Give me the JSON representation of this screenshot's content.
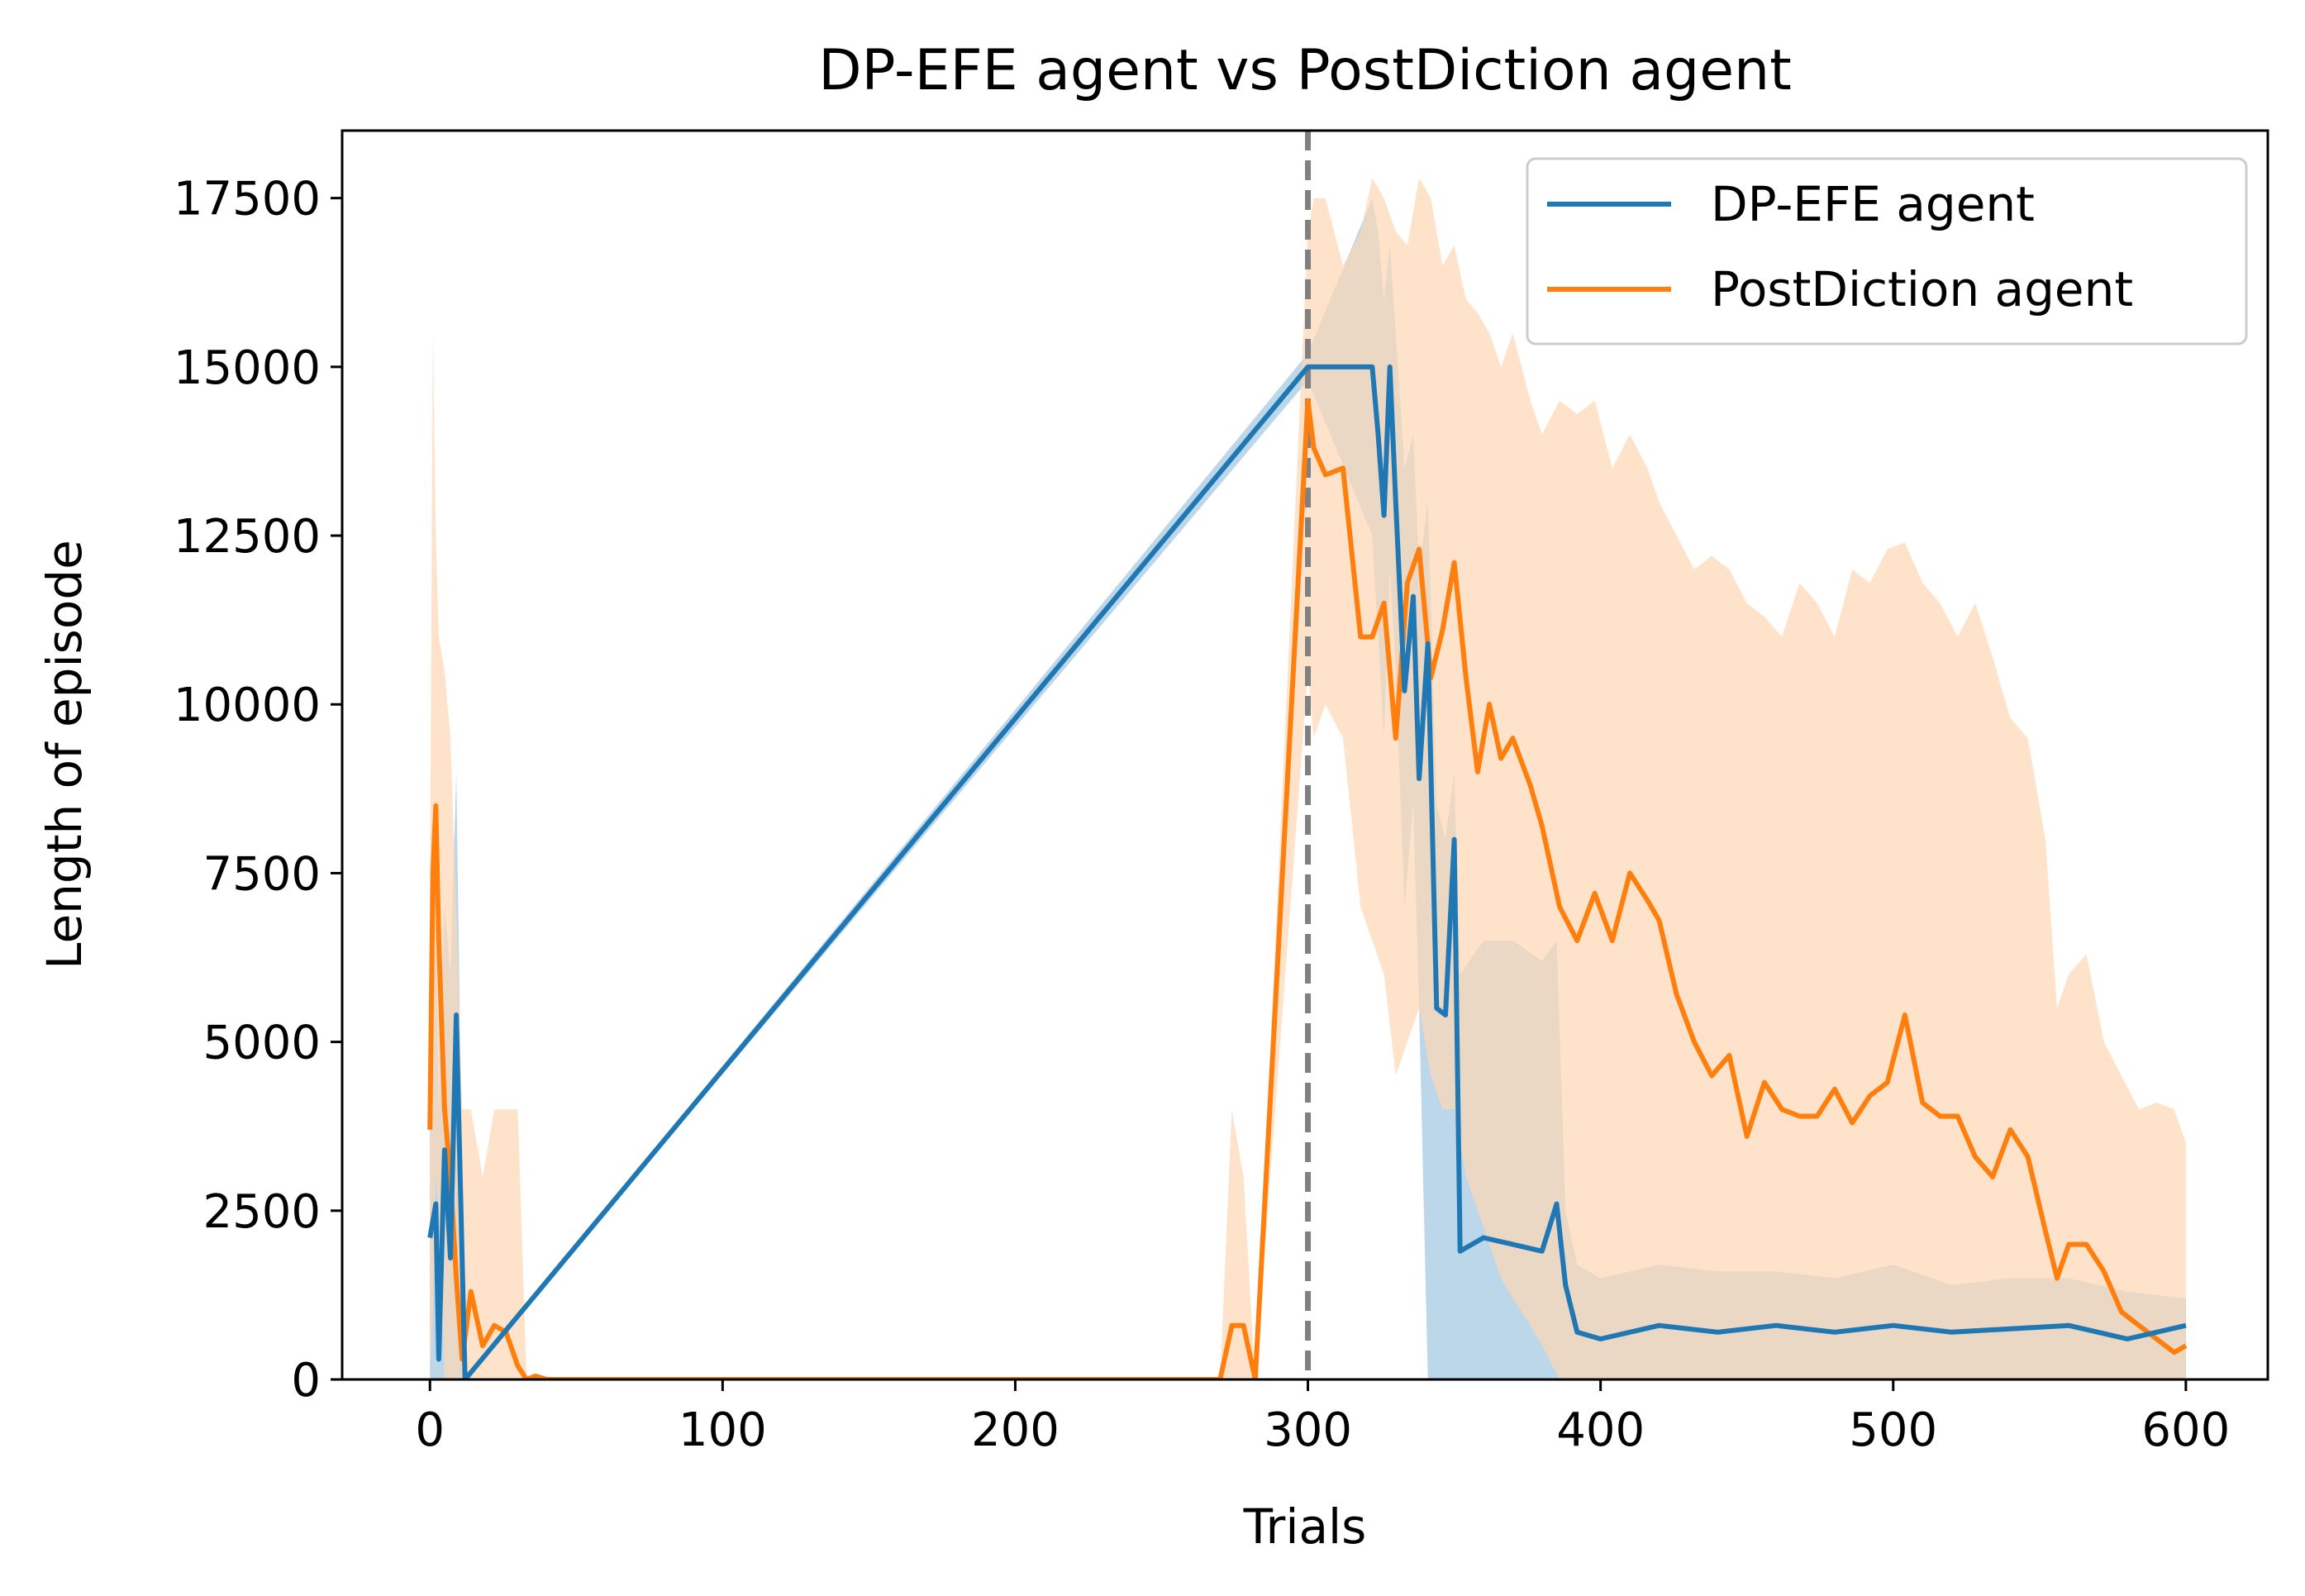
{
  "chart_data": {
    "type": "line",
    "title": "DP-EFE agent vs PostDiction agent",
    "xlabel": "Trials",
    "ylabel": "Length of episode",
    "xlim": [
      -30,
      628
    ],
    "ylim": [
      0,
      18500
    ],
    "x_ticks": [
      0,
      100,
      200,
      300,
      400,
      500,
      600
    ],
    "y_ticks": [
      0,
      2500,
      5000,
      7500,
      10000,
      12500,
      15000,
      17500
    ],
    "grid": false,
    "legend_placement": "top-right",
    "vline": {
      "x": 300,
      "style": "dashed",
      "color": "#808080"
    },
    "series": [
      {
        "name": "DP-EFE agent",
        "color": "#1f77b4",
        "band_color": "#a6c8e3",
        "x": [
          0,
          2,
          3,
          5,
          7,
          9,
          12,
          300,
          322,
          324,
          326,
          328,
          330,
          333,
          336,
          338,
          341,
          344,
          347,
          350,
          352,
          360,
          370,
          380,
          385,
          388,
          392,
          400,
          420,
          440,
          460,
          480,
          500,
          520,
          540,
          560,
          580,
          600
        ],
        "y": [
          2100,
          2600,
          300,
          3400,
          1800,
          5400,
          0,
          15000,
          15000,
          14000,
          12800,
          15000,
          13000,
          10200,
          11600,
          8900,
          10900,
          5500,
          5400,
          8000,
          1900,
          2100,
          2000,
          1900,
          2600,
          1400,
          700,
          600,
          800,
          700,
          800,
          700,
          800,
          700,
          750,
          800,
          600,
          800
        ],
        "upper": [
          4000,
          7000,
          4000,
          7000,
          6000,
          9000,
          0,
          15200,
          17500,
          17000,
          16000,
          16800,
          15500,
          13500,
          14000,
          12000,
          13000,
          8500,
          8000,
          9000,
          6000,
          6500,
          6500,
          6200,
          6500,
          2500,
          1700,
          1500,
          1700,
          1600,
          1600,
          1500,
          1700,
          1400,
          1500,
          1500,
          1300,
          1200
        ],
        "lower": [
          0,
          0,
          0,
          0,
          0,
          0,
          0,
          14800,
          12500,
          11000,
          9500,
          12000,
          10500,
          7000,
          8500,
          5500,
          0,
          0,
          0,
          0,
          0,
          0,
          0,
          0,
          0,
          0,
          0,
          0,
          0,
          0,
          0,
          0,
          0,
          0,
          0,
          0,
          0,
          0
        ]
      },
      {
        "name": "PostDiction agent",
        "color": "#ff7f0e",
        "band_color": "#fdd7b3",
        "x": [
          0,
          1,
          2,
          3,
          5,
          7,
          9,
          11,
          14,
          18,
          22,
          26,
          30,
          33,
          36,
          40,
          60,
          100,
          200,
          270,
          274,
          278,
          282,
          300,
          302,
          306,
          312,
          318,
          322,
          326,
          330,
          334,
          338,
          342,
          346,
          350,
          354,
          358,
          362,
          366,
          370,
          376,
          380,
          386,
          392,
          398,
          404,
          410,
          416,
          420,
          426,
          432,
          438,
          444,
          450,
          456,
          462,
          468,
          474,
          480,
          486,
          492,
          498,
          504,
          510,
          516,
          522,
          528,
          534,
          540,
          546,
          552,
          556,
          560,
          566,
          572,
          578,
          584,
          590,
          596,
          600
        ],
        "y": [
          3700,
          7500,
          8500,
          6500,
          4000,
          3000,
          1500,
          300,
          1300,
          500,
          800,
          700,
          200,
          0,
          50,
          0,
          0,
          0,
          0,
          0,
          800,
          800,
          0,
          14500,
          13800,
          13400,
          13500,
          11000,
          11000,
          11500,
          9500,
          11800,
          12300,
          10400,
          11100,
          12100,
          10400,
          9000,
          10000,
          9200,
          9500,
          8800,
          8200,
          7000,
          6500,
          7200,
          6500,
          7500,
          7100,
          6800,
          5700,
          5000,
          4500,
          4800,
          3600,
          4400,
          4000,
          3900,
          3900,
          4300,
          3800,
          4200,
          4400,
          5400,
          4100,
          3900,
          3900,
          3300,
          3000,
          3700,
          3300,
          2200,
          1500,
          2000,
          2000,
          1600,
          1000,
          800,
          600,
          400,
          500
        ],
        "upper": [
          7000,
          15600,
          12500,
          11000,
          10500,
          9500,
          7000,
          4000,
          4000,
          3000,
          4000,
          4000,
          4000,
          0,
          0,
          0,
          0,
          0,
          0,
          0,
          4000,
          3000,
          0,
          17000,
          17500,
          17500,
          16500,
          17000,
          17800,
          17500,
          17000,
          16800,
          17800,
          17500,
          16500,
          16800,
          16000,
          15800,
          15500,
          15000,
          15500,
          14500,
          14000,
          14500,
          14300,
          14500,
          13500,
          14000,
          13500,
          13000,
          12500,
          12000,
          12200,
          12000,
          11500,
          11300,
          11000,
          11800,
          11500,
          11000,
          12000,
          11800,
          12300,
          12400,
          11800,
          11500,
          11000,
          11500,
          10700,
          9800,
          9500,
          8000,
          5500,
          6000,
          6300,
          5000,
          4500,
          4000,
          4100,
          4000,
          3500
        ],
        "lower": [
          0,
          1000,
          3000,
          2500,
          0,
          0,
          0,
          0,
          0,
          0,
          0,
          0,
          0,
          0,
          0,
          0,
          0,
          0,
          0,
          0,
          0,
          0,
          0,
          10500,
          9500,
          10000,
          9500,
          7000,
          6500,
          6000,
          4500,
          5000,
          5500,
          4500,
          4000,
          4000,
          3000,
          2500,
          2000,
          1500,
          1200,
          800,
          500,
          0,
          0,
          0,
          0,
          0,
          0,
          0,
          0,
          0,
          0,
          0,
          0,
          0,
          0,
          0,
          0,
          0,
          0,
          0,
          0,
          0,
          0,
          0,
          0,
          0,
          0,
          0,
          0,
          0,
          0,
          0,
          0,
          0,
          0,
          0,
          0,
          0,
          0
        ]
      }
    ]
  }
}
